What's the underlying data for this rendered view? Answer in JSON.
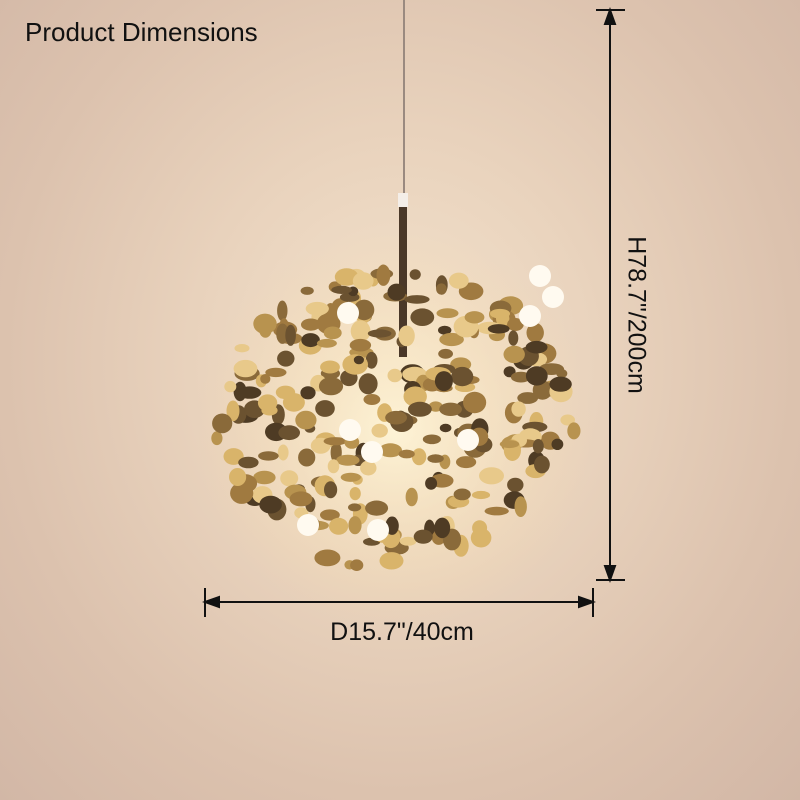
{
  "title": "Product Dimensions",
  "height_label": "H78.7\"/200cm",
  "diameter_label": "D15.7\"/40cm",
  "colors": {
    "background": "#e9d3bd",
    "disc_gold": "#b8934f",
    "line": "#111111"
  }
}
